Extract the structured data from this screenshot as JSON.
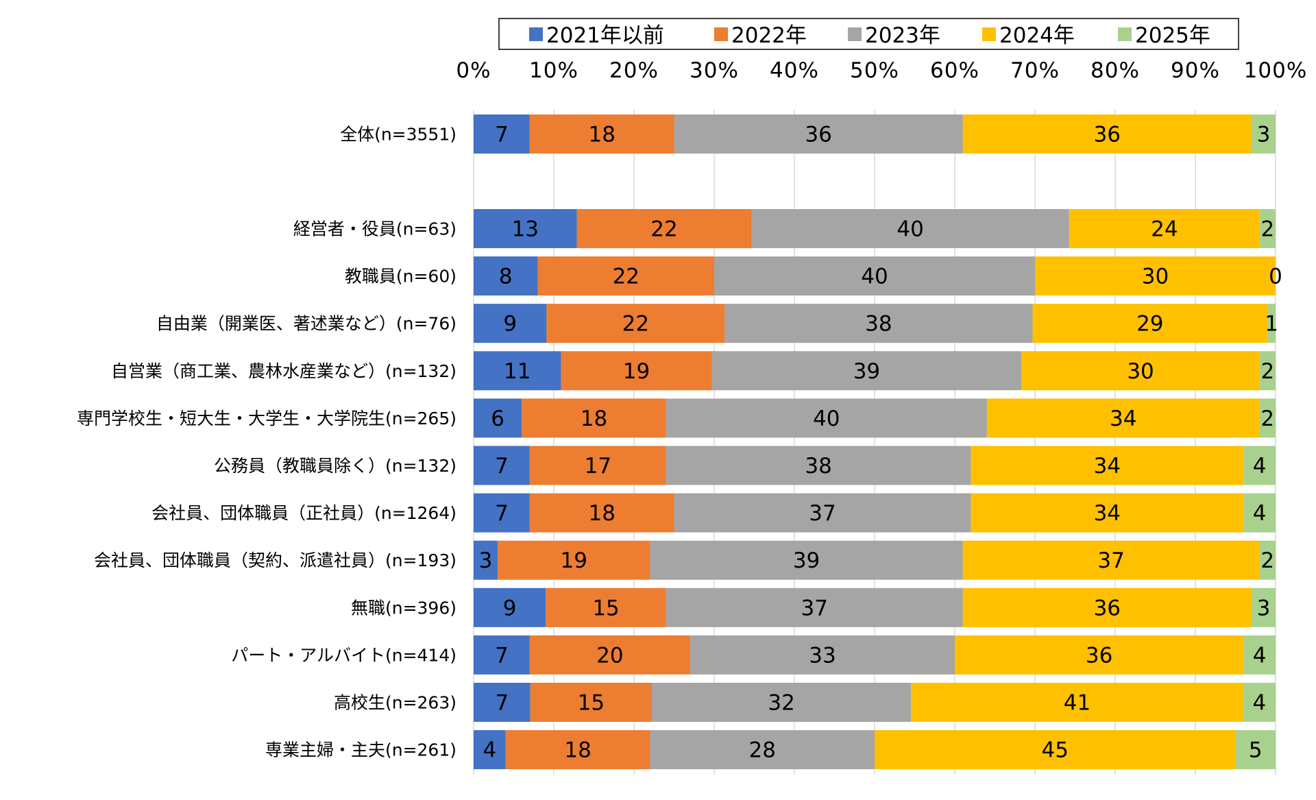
{
  "chart_data": {
    "type": "bar",
    "orientation": "horizontal",
    "stacked": "percent",
    "title": "",
    "xlabel": "",
    "ylabel": "",
    "xlim": [
      0,
      100
    ],
    "grid": true,
    "legend_position": "top",
    "x_ticks": [
      "0%",
      "10%",
      "20%",
      "30%",
      "40%",
      "50%",
      "60%",
      "70%",
      "80%",
      "90%",
      "100%"
    ],
    "categories": [
      "全体(n=3551)",
      "",
      "経営者・役員(n=63)",
      "教職員(n=60)",
      "自由業（開業医、著述業など）(n=76)",
      "自営業（商工業、農林水産業など）(n=132)",
      "専門学校生・短大生・大学生・大学院生(n=265)",
      "公務員（教職員除く）(n=132)",
      "会社員、団体職員（正社員）(n=1264)",
      "会社員、団体職員（契約、派遣社員）(n=193)",
      "無職(n=396)",
      "パート・アルバイト(n=414)",
      "高校生(n=263)",
      "専業主婦・主夫(n=261)"
    ],
    "series": [
      {
        "name": "2021年以前",
        "color": "#4472C4",
        "values": [
          7,
          null,
          13,
          8,
          9,
          11,
          6,
          7,
          7,
          3,
          9,
          7,
          7,
          4
        ]
      },
      {
        "name": "2022年",
        "color": "#ED7D31",
        "values": [
          18,
          null,
          22,
          22,
          22,
          19,
          18,
          17,
          18,
          19,
          15,
          20,
          15,
          18
        ]
      },
      {
        "name": "2023年",
        "color": "#A5A5A5",
        "values": [
          36,
          null,
          40,
          40,
          38,
          39,
          40,
          38,
          37,
          39,
          37,
          33,
          32,
          28
        ]
      },
      {
        "name": "2024年",
        "color": "#FFC000",
        "values": [
          36,
          null,
          24,
          30,
          29,
          30,
          34,
          34,
          34,
          37,
          36,
          36,
          41,
          45
        ]
      },
      {
        "name": "2025年",
        "color": "#A9D18E",
        "values": [
          3,
          null,
          2,
          0,
          1,
          2,
          2,
          4,
          4,
          2,
          3,
          4,
          4,
          5
        ]
      }
    ]
  }
}
